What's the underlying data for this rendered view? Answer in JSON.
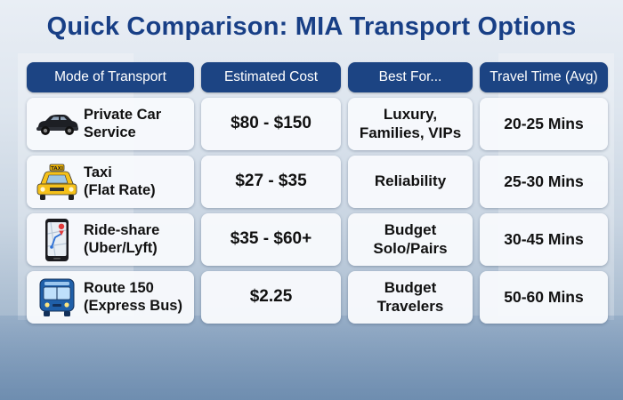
{
  "title": "Quick Comparison: MIA Transport Options",
  "headers": [
    "Mode of Transport",
    "Estimated Cost",
    "Best For...",
    "Travel Time (Avg)"
  ],
  "rows": [
    {
      "icon": "car-icon",
      "mode_line1": "Private Car",
      "mode_line2": "Service",
      "cost": "$80 - $150",
      "best_line1": "Luxury,",
      "best_line2": "Families, VIPs",
      "time": "20-25 Mins"
    },
    {
      "icon": "taxi-icon",
      "mode_line1": "Taxi",
      "mode_line2": "(Flat Rate)",
      "cost": "$27 - $35",
      "best_line1": "Reliability",
      "best_line2": "",
      "time": "25-30 Mins"
    },
    {
      "icon": "smartphone-icon",
      "mode_line1": "Ride-share",
      "mode_line2": "(Uber/Lyft)",
      "cost": "$35 - $60+",
      "best_line1": "Budget",
      "best_line2": "Solo/Pairs",
      "time": "30-45 Mins"
    },
    {
      "icon": "bus-icon",
      "mode_line1": "Route 150",
      "mode_line2": "(Express Bus)",
      "cost": "$2.25",
      "best_line1": "Budget",
      "best_line2": "Travelers",
      "time": "50-60 Mins"
    }
  ],
  "colors": {
    "header_bg": "#1c4483",
    "title": "#183f86",
    "cell_bg": "#f7f9fc"
  }
}
